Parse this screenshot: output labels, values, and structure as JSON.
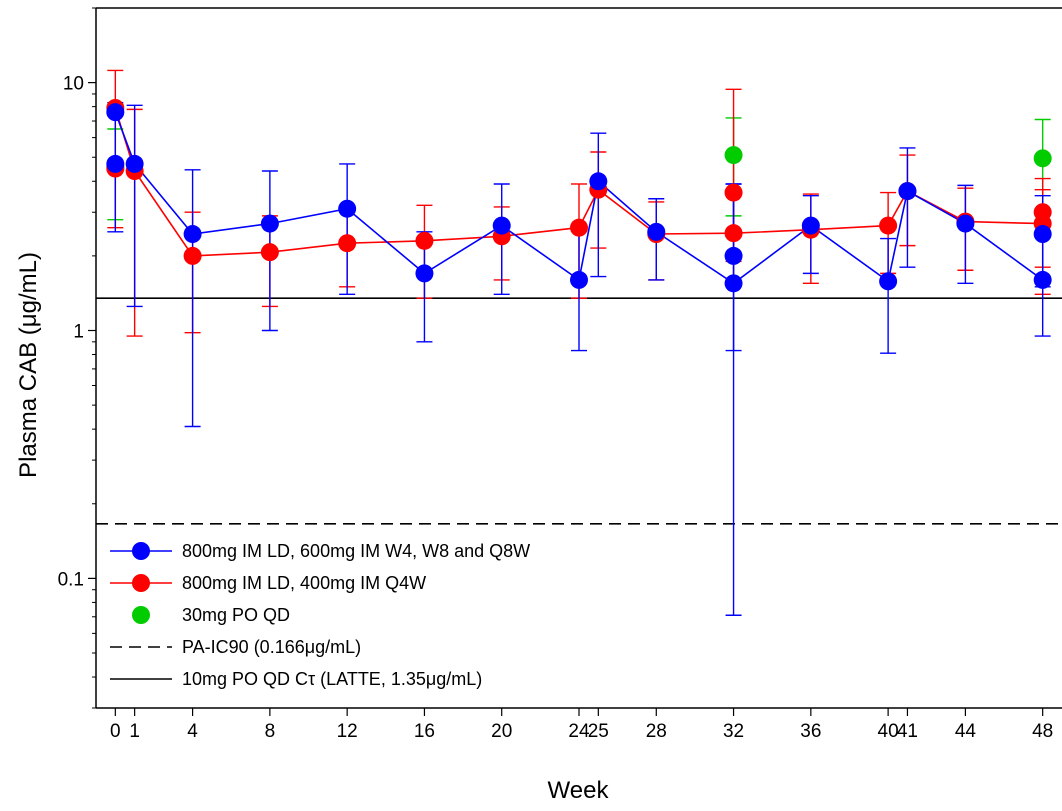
{
  "chart_data": {
    "type": "line",
    "title": "",
    "xlabel": "Week",
    "ylabel": "Plasma CAB (μg/mL)",
    "yscale": "log",
    "ylim": [
      0.03,
      20
    ],
    "xlim": [
      -1,
      49
    ],
    "x_ticks": [
      0,
      1,
      4,
      8,
      12,
      16,
      20,
      24,
      25,
      28,
      32,
      36,
      40,
      41,
      44,
      48
    ],
    "y_ticks": [
      {
        "value": 0.1,
        "label": "0.1"
      },
      {
        "value": 1,
        "label": "1"
      },
      {
        "value": 10,
        "label": "10"
      }
    ],
    "grid": false,
    "legend_position": "bottom-left",
    "series": [
      {
        "name": "800mg IM LD, 600mg IM W4, W8 and Q8W",
        "color": "#0000ff",
        "style": "line-marker",
        "points": [
          {
            "x": 0,
            "y": 7.6,
            "lo": 2.5,
            "hi": 8.3
          },
          {
            "x": 1,
            "y": 4.7,
            "lo": 1.25,
            "hi": 8.1
          },
          {
            "x": 4,
            "y": 2.45,
            "lo": 0.41,
            "hi": 4.45
          },
          {
            "x": 8,
            "y": 2.7,
            "lo": 1.0,
            "hi": 4.4
          },
          {
            "x": 12,
            "y": 3.1,
            "lo": 1.4,
            "hi": 4.7
          },
          {
            "x": 16,
            "y": 1.7,
            "lo": 0.9,
            "hi": 2.5
          },
          {
            "x": 20,
            "y": 2.65,
            "lo": 1.4,
            "hi": 3.9
          },
          {
            "x": 24,
            "y": 1.6,
            "lo": 0.83,
            "hi": 2.6
          },
          {
            "x": 25,
            "y": 4.0,
            "lo": 1.65,
            "hi": 6.25
          },
          {
            "x": 28,
            "y": 2.5,
            "lo": 1.6,
            "hi": 3.4
          },
          {
            "x": 32,
            "y": 1.55,
            "lo": 0.071,
            "hi": 3.9
          },
          {
            "x": 36,
            "y": 2.65,
            "lo": 1.7,
            "hi": 3.5
          },
          {
            "x": 40,
            "y": 1.58,
            "lo": 0.81,
            "hi": 2.35
          },
          {
            "x": 41,
            "y": 3.65,
            "lo": 1.8,
            "hi": 5.45
          },
          {
            "x": 44,
            "y": 2.7,
            "lo": 1.55,
            "hi": 3.85
          },
          {
            "x": 48,
            "y": 1.6,
            "lo": 0.95,
            "hi": 2.5
          }
        ],
        "extra_markers": [
          {
            "x": 0,
            "y": 4.7
          },
          {
            "x": 32,
            "y": 2.0,
            "lo": 0.83,
            "hi": 3.9
          },
          {
            "x": 48,
            "y": 2.45,
            "lo": 1.5,
            "hi": 3.5
          }
        ]
      },
      {
        "name": "800mg IM LD, 400mg IM Q4W",
        "color": "#ff0000",
        "style": "line-marker",
        "points": [
          {
            "x": 0,
            "y": 7.9,
            "lo": 2.6,
            "hi": 11.2
          },
          {
            "x": 1,
            "y": 4.4,
            "lo": 0.95,
            "hi": 7.8
          },
          {
            "x": 4,
            "y": 2.0,
            "lo": 0.98,
            "hi": 3.0
          },
          {
            "x": 8,
            "y": 2.07,
            "lo": 1.25,
            "hi": 2.9
          },
          {
            "x": 12,
            "y": 2.25,
            "lo": 1.5,
            "hi": 3.0
          },
          {
            "x": 16,
            "y": 2.3,
            "lo": 1.35,
            "hi": 3.2
          },
          {
            "x": 20,
            "y": 2.4,
            "lo": 1.6,
            "hi": 3.15
          },
          {
            "x": 24,
            "y": 2.6,
            "lo": 1.35,
            "hi": 3.9
          },
          {
            "x": 25,
            "y": 3.7,
            "lo": 2.15,
            "hi": 5.25
          },
          {
            "x": 28,
            "y": 2.45,
            "lo": 1.6,
            "hi": 3.3
          },
          {
            "x": 32,
            "y": 2.47,
            "lo": 1.5,
            "hi": 3.5
          },
          {
            "x": 36,
            "y": 2.55,
            "lo": 1.55,
            "hi": 3.55
          },
          {
            "x": 40,
            "y": 2.65,
            "lo": 1.7,
            "hi": 3.6
          },
          {
            "x": 41,
            "y": 3.65,
            "lo": 2.2,
            "hi": 5.1
          },
          {
            "x": 44,
            "y": 2.75,
            "lo": 1.75,
            "hi": 3.75
          },
          {
            "x": 48,
            "y": 2.7,
            "lo": 1.4,
            "hi": 3.7
          }
        ],
        "extra_markers": [
          {
            "x": 0,
            "y": 4.5
          },
          {
            "x": 32,
            "y": 3.6,
            "lo": 1.9,
            "hi": 9.4
          },
          {
            "x": 48,
            "y": 3.0,
            "lo": 1.8,
            "hi": 4.1
          }
        ]
      },
      {
        "name": "30mg PO QD",
        "color": "#00cc00",
        "style": "marker",
        "points": [
          {
            "x": 0,
            "y": 4.6,
            "lo": 2.8,
            "hi": 6.5
          },
          {
            "x": 32,
            "y": 5.1,
            "lo": 2.9,
            "hi": 7.2
          },
          {
            "x": 48,
            "y": 4.95,
            "lo": 2.8,
            "hi": 7.1
          }
        ]
      }
    ],
    "reference_lines": [
      {
        "name": "PA-IC90 (0.166μg/mL)",
        "y": 0.166,
        "style": "dashed",
        "color": "#000000"
      },
      {
        "name": "10mg PO QD Cτ (LATTE, 1.35μg/mL)",
        "y": 1.35,
        "style": "solid",
        "color": "#000000"
      }
    ]
  }
}
